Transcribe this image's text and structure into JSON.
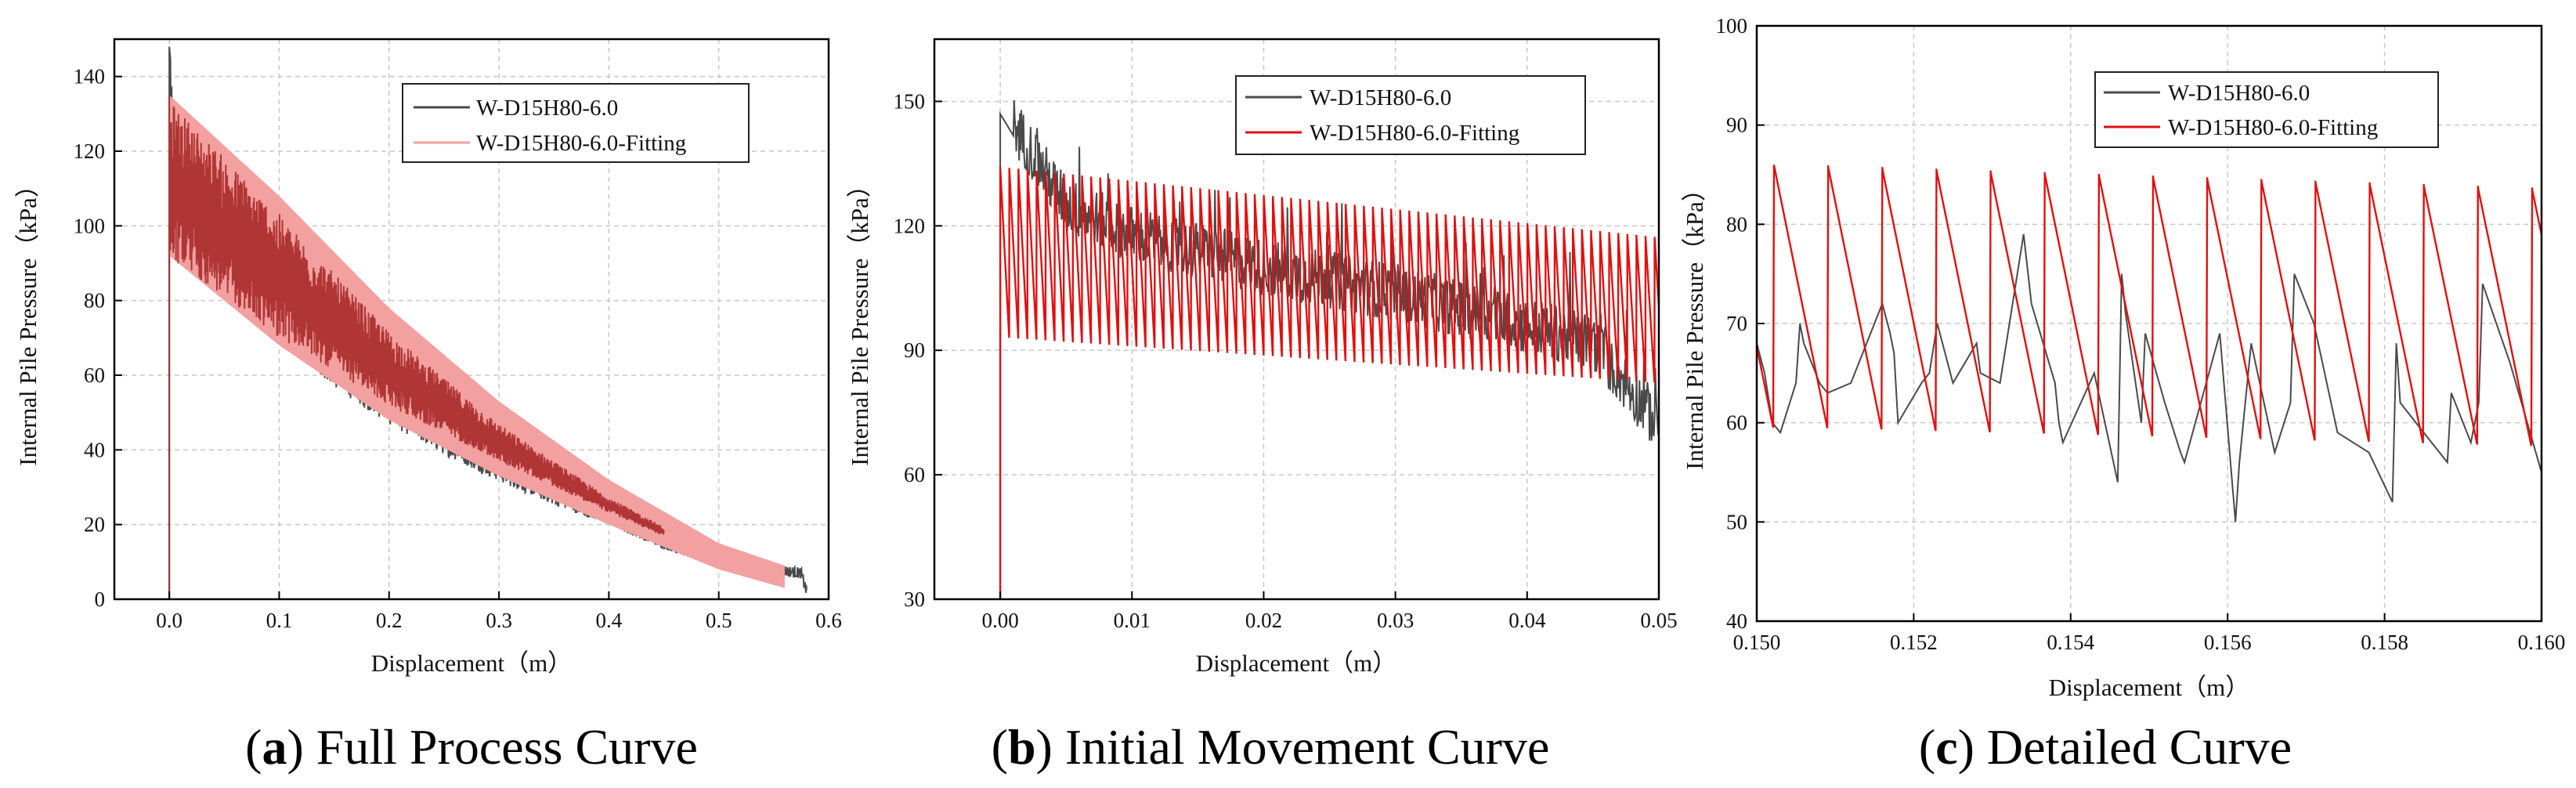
{
  "colors": {
    "measured": "#4a4a4a",
    "fitting_a": "#a82a2a",
    "fitting_band": "#f2a0a0",
    "fitting": "#e01010",
    "grid": "#c8c8c8"
  },
  "chart_data": [
    {
      "id": "a",
      "type": "line",
      "caption_letter": "a",
      "caption_text": " Full Process Curve",
      "xlabel": "Displacement（m）",
      "ylabel": "Internal Pile Pressure（kPa）",
      "xlim": [
        -0.05,
        0.6
      ],
      "ylim": [
        0,
        150
      ],
      "xticks": [
        0.0,
        0.1,
        0.2,
        0.3,
        0.4,
        0.5,
        0.6
      ],
      "xtick_labels": [
        "0.0",
        "0.1",
        "0.2",
        "0.3",
        "0.4",
        "0.5",
        "0.6"
      ],
      "yticks": [
        0,
        20,
        40,
        60,
        80,
        100,
        120,
        140
      ],
      "ytick_labels": [
        "0",
        "20",
        "40",
        "60",
        "80",
        "100",
        "120",
        "140"
      ],
      "grid": true,
      "legend": [
        "W-D15H80-6.0",
        "W-D15H80-6.0-Fitting"
      ],
      "legend_position": "top-right",
      "series": [
        {
          "name": "W-D15H80-6.0",
          "kind": "measured",
          "x": [
            0,
            0.0005,
            0.002,
            0.05,
            0.1,
            0.15,
            0.2,
            0.25,
            0.3,
            0.35,
            0.4,
            0.45,
            0.5,
            0.55,
            0.575,
            0.58
          ],
          "y": [
            0,
            148,
            125,
            100,
            78,
            63,
            52,
            43,
            35,
            28,
            22,
            15,
            10,
            8,
            7,
            2
          ]
        },
        {
          "name": "W-D15H80-6.0-Fitting",
          "kind": "fitting_band",
          "x": [
            0,
            0.1,
            0.2,
            0.3,
            0.4,
            0.5,
            0.56
          ],
          "upper": [
            135,
            108,
            78,
            53,
            32,
            15,
            9
          ],
          "lower": [
            92,
            68,
            48,
            33,
            20,
            8,
            3
          ]
        }
      ]
    },
    {
      "id": "b",
      "type": "line",
      "caption_letter": "b",
      "caption_text": " Initial Movement Curve",
      "xlabel": "Displacement（m）",
      "ylabel": "Internal Pile Pressure（kPa）",
      "xlim": [
        -0.005,
        0.05
      ],
      "ylim": [
        30,
        165
      ],
      "xticks": [
        0.0,
        0.01,
        0.02,
        0.03,
        0.04,
        0.05
      ],
      "xtick_labels": [
        "0.00",
        "0.01",
        "0.02",
        "0.03",
        "0.04",
        "0.05"
      ],
      "yticks": [
        30,
        60,
        90,
        120,
        150
      ],
      "ytick_labels": [
        "30",
        "60",
        "90",
        "120",
        "150"
      ],
      "grid": true,
      "legend": [
        "W-D15H80-6.0",
        "W-D15H80-6.0-Fitting"
      ],
      "legend_position": "top-right",
      "series": [
        {
          "name": "W-D15H80-6.0",
          "kind": "measured",
          "x": [
            0,
            0.0005,
            0.005,
            0.01,
            0.015,
            0.02,
            0.025,
            0.03,
            0.035,
            0.04,
            0.045,
            0.05
          ],
          "y": [
            122,
            147,
            125,
            118,
            114,
            110,
            107,
            104,
            100,
            96,
            92,
            72
          ]
        },
        {
          "name": "W-D15H80-6.0-Fitting",
          "kind": "sawtooth",
          "x_start": 0.0,
          "x_end": 0.05,
          "period": 0.00069,
          "peak_start": 134,
          "peak_end": 117,
          "trough_start": 93,
          "trough_end": 82
        }
      ]
    },
    {
      "id": "c",
      "type": "line",
      "caption_letter": "c",
      "caption_text": " Detailed Curve",
      "xlabel": "Displacement（m）",
      "ylabel": "Internal Pile Pressure（kPa）",
      "xlim": [
        0.15,
        0.16
      ],
      "ylim": [
        40,
        100
      ],
      "xticks": [
        0.15,
        0.152,
        0.154,
        0.156,
        0.158,
        0.16
      ],
      "xtick_labels": [
        "0.150",
        "0.152",
        "0.154",
        "0.156",
        "0.158",
        "0.160"
      ],
      "yticks": [
        40,
        50,
        60,
        70,
        80,
        90,
        100
      ],
      "ytick_labels": [
        "40",
        "50",
        "60",
        "70",
        "80",
        "90",
        "100"
      ],
      "grid": true,
      "legend": [
        "W-D15H80-6.0",
        "W-D15H80-6.0-Fitting"
      ],
      "legend_position": "top-right",
      "series": [
        {
          "name": "W-D15H80-6.0",
          "kind": "measured",
          "x": [
            0.15,
            0.1501,
            0.1502,
            0.1503,
            0.1505,
            0.15055,
            0.1506,
            0.1508,
            0.1509,
            0.1512,
            0.1516,
            0.1517,
            0.15175,
            0.1518,
            0.1521,
            0.1522,
            0.1523,
            0.1524,
            0.1525,
            0.1528,
            0.15285,
            0.1531,
            0.1534,
            0.1535,
            0.1538,
            0.15385,
            0.1539,
            0.1543,
            0.1546,
            0.15465,
            0.1547,
            0.1549,
            0.15495,
            0.1552,
            0.1554,
            0.15545,
            0.1559,
            0.1561,
            0.15615,
            0.1563,
            0.1566,
            0.1568,
            0.15685,
            0.1571,
            0.1574,
            0.1578,
            0.1581,
            0.15815,
            0.1582,
            0.1586,
            0.1588,
            0.15885,
            0.1591,
            0.1592,
            0.15925,
            0.1596,
            0.16
          ],
          "y": [
            68,
            65,
            60,
            59,
            64,
            70,
            68,
            64,
            63,
            64,
            72,
            69,
            67,
            60,
            64,
            65,
            70,
            67,
            64,
            68,
            65,
            64,
            79,
            72,
            64,
            60,
            58,
            65,
            54,
            75,
            71,
            60,
            69,
            62,
            57,
            56,
            69,
            50,
            56,
            68,
            57,
            62,
            75,
            70,
            59,
            57,
            52,
            68,
            62,
            58,
            56,
            63,
            58,
            62,
            74,
            66,
            55
          ]
        },
        {
          "name": "W-D15H80-6.0-Fitting",
          "kind": "sawtooth",
          "x_start": 0.15,
          "x_end": 0.16,
          "period": 0.00069,
          "x_offset": 0.00022,
          "peak_start": 86,
          "peak_end": 83.5,
          "trough_start": 59.5,
          "trough_end": 57.5
        }
      ]
    }
  ]
}
